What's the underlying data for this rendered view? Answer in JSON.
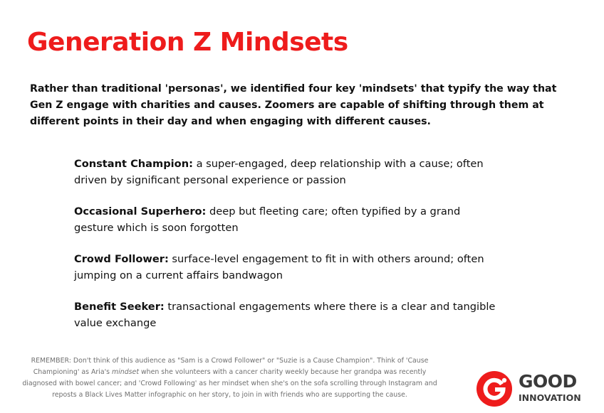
{
  "title": "Generation Z Mindsets",
  "intro": "Rather than traditional 'personas', we identified four key 'mindsets' that typify the way that Gen Z engage with charities and causes. Zoomers are capable of shifting through them at different points in their day and when engaging with different causes.",
  "mindsets": [
    {
      "term": "Constant Champion:",
      "description": " a super-engaged, deep relationship with a cause; often driven by significant personal experience or passion"
    },
    {
      "term": "Occasional Superhero:",
      "description": " deep but fleeting care; often typified by a grand gesture which is soon forgotten"
    },
    {
      "term": "Crowd Follower:",
      "description": " surface-level engagement to fit in with others around; often jumping on a current affairs bandwagon"
    },
    {
      "term": "Benefit Seeker:",
      "description": " transactional engagements where there is a clear and tangible value exchange"
    }
  ],
  "note": {
    "before": "REMEMBER: Don't think of this audience as \"Sam is a Crowd Follower\" or \"Suzie is a Cause Champion\". Think of 'Cause Championing' as Aria's ",
    "emphasis": "mindset",
    "after": " when she volunteers with a cancer charity weekly because her grandpa was recently diagnosed with bowel cancer; and 'Crowd Following' as her mindset when she's on the sofa scrolling through Instagram and reposts a Black Lives Matter infographic on her story, to join in with friends who are supporting the cause."
  },
  "logo": {
    "line1": "GOOD",
    "line2": "INNOVATION",
    "icon": "good-innovation-mark-icon"
  },
  "colors": {
    "accent": "#ee1c1c",
    "text": "#111111",
    "muted": "#707070",
    "logo_text": "#3a3a3a"
  }
}
